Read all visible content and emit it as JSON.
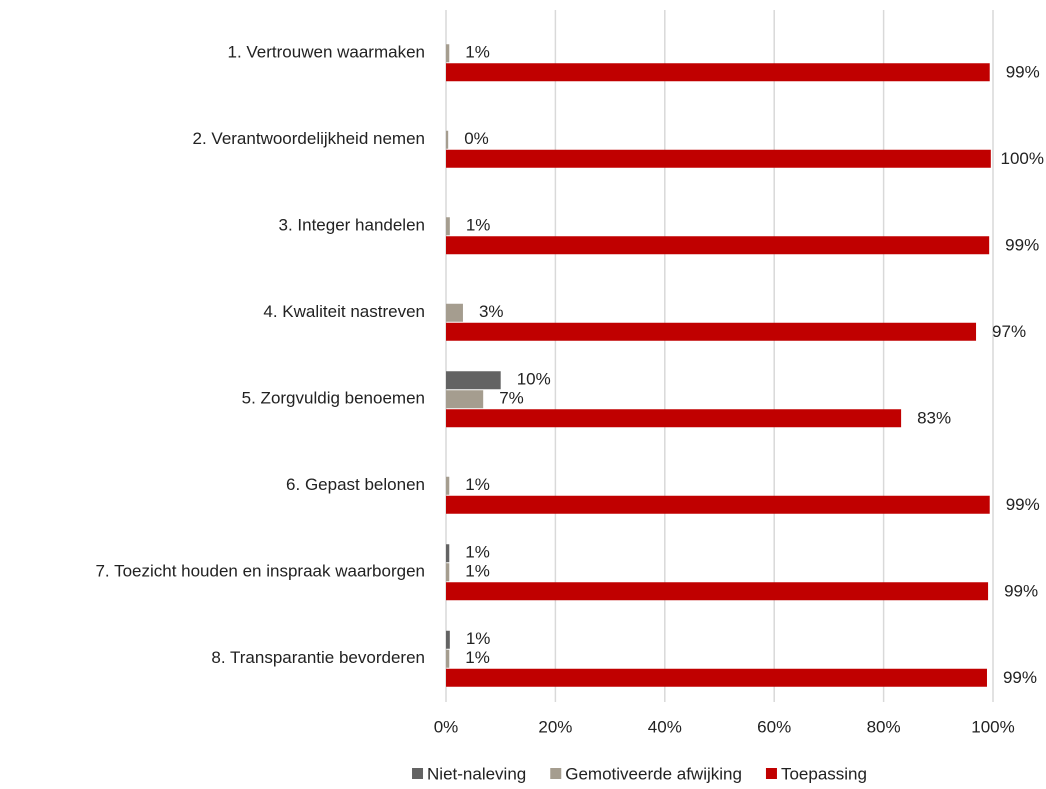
{
  "chart_data": {
    "type": "barh",
    "categories": [
      "1. Vertrouwen waarmaken",
      "2. Verantwoordelijkheid nemen",
      "3. Integer handelen",
      "4. Kwaliteit nastreven",
      "5. Zorgvuldig benoemen",
      "6. Gepast belonen",
      "7. Toezicht houden en inspraak waarborgen",
      "8. Transparantie bevorderen"
    ],
    "series": [
      {
        "name": "Niet-naleving",
        "color": "#636363",
        "values": [
          null,
          null,
          null,
          null,
          10,
          null,
          0.6,
          0.7
        ],
        "value_labels": [
          null,
          null,
          null,
          null,
          "10%",
          null,
          "1%",
          "1%"
        ]
      },
      {
        "name": "Gemotiveerde afwijking",
        "color": "#a59d8f",
        "values": [
          0.6,
          0.4,
          0.7,
          3.1,
          6.8,
          0.6,
          0.6,
          0.6
        ],
        "value_labels": [
          "1%",
          "0%",
          "1%",
          "3%",
          "7%",
          "1%",
          "1%",
          "1%"
        ]
      },
      {
        "name": "Toepassing",
        "color": "#c00000",
        "values": [
          99.4,
          99.6,
          99.3,
          96.9,
          83.2,
          99.4,
          99.1,
          98.9
        ],
        "value_labels": [
          "99%",
          "100%",
          "99%",
          "97%",
          "83%",
          "99%",
          "99%",
          "99%"
        ]
      }
    ],
    "xlim": [
      0,
      100
    ],
    "xticks": [
      {
        "value": 0,
        "label": "0%"
      },
      {
        "value": 20,
        "label": "20%"
      },
      {
        "value": 40,
        "label": "40%"
      },
      {
        "value": 60,
        "label": "60%"
      },
      {
        "value": 80,
        "label": "80%"
      },
      {
        "value": 100,
        "label": "100%"
      }
    ],
    "grid": true,
    "legend": "bottom"
  }
}
